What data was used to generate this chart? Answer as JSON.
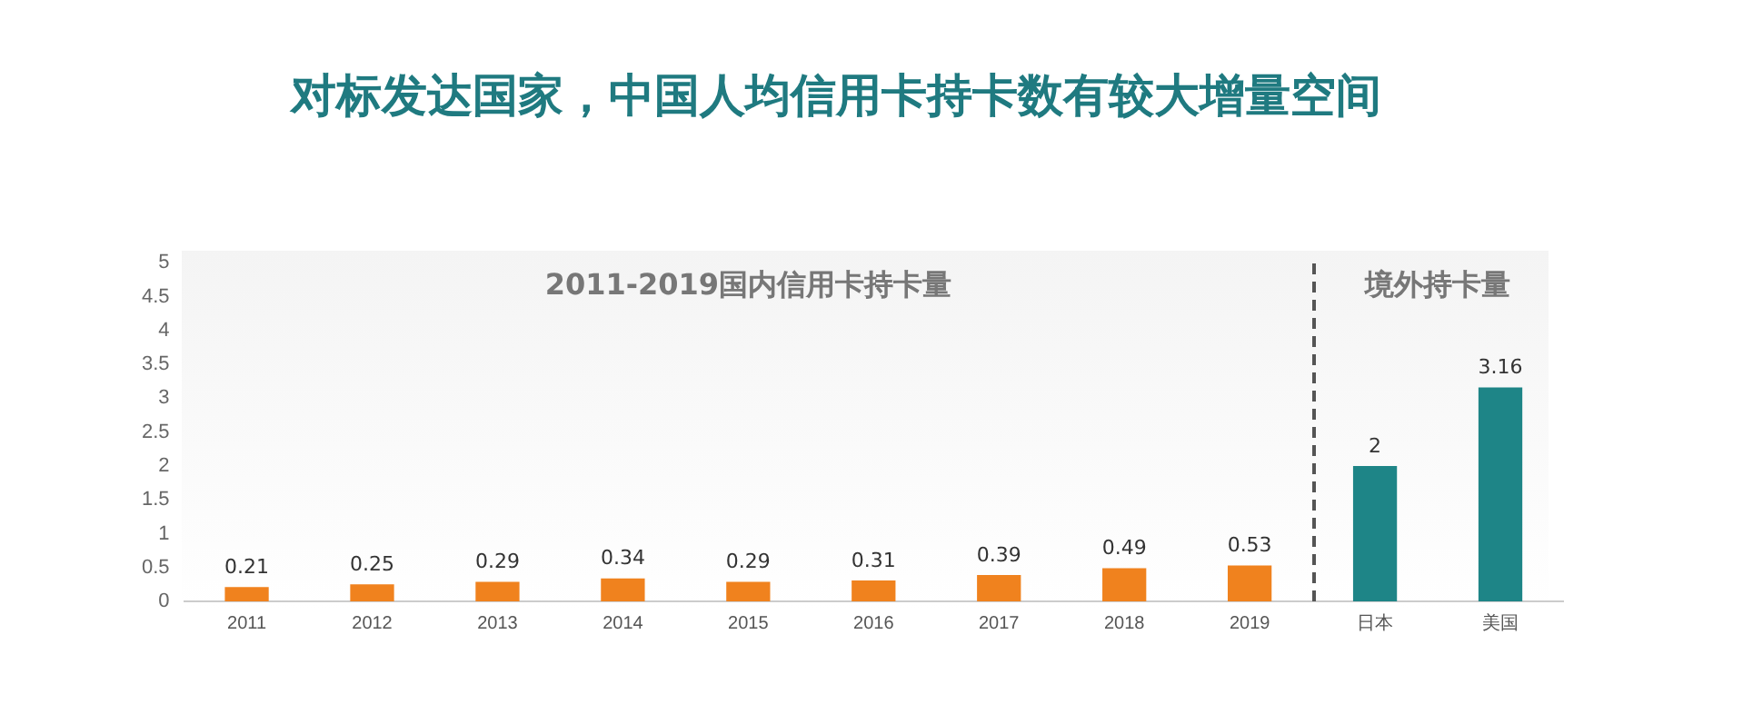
{
  "chart_data": {
    "type": "bar",
    "title": "对标发达国家，中国人均信用卡持卡数有较大增量空间",
    "categories": [
      "2011",
      "2012",
      "2013",
      "2014",
      "2015",
      "2016",
      "2017",
      "2018",
      "2019",
      "日本",
      "美国"
    ],
    "values": [
      0.21,
      0.25,
      0.29,
      0.34,
      0.29,
      0.31,
      0.39,
      0.49,
      0.53,
      2,
      3.16
    ],
    "colors": [
      "#f0821e",
      "#f0821e",
      "#f0821e",
      "#f0821e",
      "#f0821e",
      "#f0821e",
      "#f0821e",
      "#f0821e",
      "#f0821e",
      "#1e8587",
      "#1e8587"
    ],
    "ylim": [
      0,
      5
    ],
    "yticks": [
      0,
      0.5,
      1,
      1.5,
      2,
      2.5,
      3,
      3.5,
      4,
      4.5,
      5
    ],
    "grid": false,
    "legend": false,
    "data_labels": true,
    "annotations": [
      "2011-2019国内信用卡持卡量",
      "境外持卡量"
    ]
  }
}
